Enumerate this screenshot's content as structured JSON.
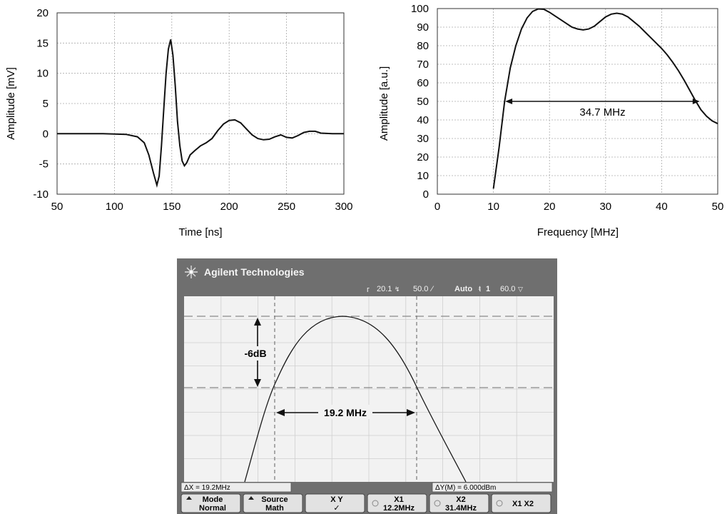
{
  "chart_data": [
    {
      "type": "line",
      "title": "",
      "xlabel": "Time [ns]",
      "ylabel": "Amplitude [mV]",
      "xlim": [
        50,
        300
      ],
      "ylim": [
        -10,
        20
      ],
      "xticks": [
        "50",
        "100",
        "150",
        "200",
        "250",
        "300"
      ],
      "yticks": [
        "-10",
        "-5",
        "0",
        "5",
        "10",
        "15",
        "20"
      ],
      "grid": true,
      "series": [
        {
          "x": [
            50,
            90,
            110,
            120,
            126,
            130,
            134,
            137,
            139,
            141,
            143,
            145,
            147,
            149,
            151,
            153,
            155,
            157,
            159,
            161,
            163,
            166,
            170,
            175,
            180,
            185,
            190,
            195,
            200,
            205,
            210,
            215,
            220,
            225,
            230,
            235,
            240,
            245,
            250,
            255,
            260,
            265,
            270,
            275,
            280,
            290,
            300
          ],
          "values": [
            0,
            0,
            -0.1,
            -0.5,
            -1.5,
            -3.5,
            -6.5,
            -8.5,
            -7,
            -2,
            4,
            10,
            14,
            15.6,
            13,
            8,
            2,
            -2,
            -4.5,
            -5.3,
            -4.8,
            -3.5,
            -2.8,
            -2,
            -1.5,
            -0.8,
            0.5,
            1.6,
            2.2,
            2.3,
            1.8,
            0.8,
            -0.2,
            -0.8,
            -1,
            -0.9,
            -0.5,
            -0.2,
            -0.6,
            -0.7,
            -0.3,
            0.2,
            0.4,
            0.4,
            0.1,
            0,
            0
          ]
        }
      ]
    },
    {
      "type": "line",
      "title": "",
      "xlabel": "Frequency [MHz]",
      "ylabel": "Amplitude [a.u.]",
      "xlim": [
        0,
        50
      ],
      "ylim": [
        0,
        100
      ],
      "xticks": [
        "0",
        "10",
        "20",
        "30",
        "40",
        "50"
      ],
      "yticks": [
        "0",
        "10",
        "20",
        "30",
        "40",
        "50",
        "60",
        "70",
        "80",
        "90",
        "100"
      ],
      "grid": true,
      "series": [
        {
          "x": [
            10,
            11,
            12,
            13,
            14,
            15,
            16,
            17,
            18,
            19,
            20,
            21,
            22,
            23,
            24,
            25,
            26,
            27,
            28,
            29,
            30,
            31,
            32,
            33,
            34,
            35,
            36,
            37,
            38,
            39,
            40,
            41,
            42,
            43,
            44,
            45,
            46,
            47,
            48,
            49,
            50
          ],
          "values": [
            3,
            25,
            50,
            68,
            80,
            89,
            95,
            98.5,
            99.8,
            99.6,
            98,
            96,
            94,
            92,
            90,
            89,
            88.5,
            89,
            90.5,
            93,
            95.5,
            97,
            97.5,
            97,
            95.5,
            93,
            90.5,
            87.5,
            84.5,
            81.5,
            78.5,
            75,
            71,
            66.5,
            61.5,
            56,
            50.5,
            45.5,
            42,
            39.5,
            38
          ]
        }
      ],
      "annotation": {
        "label": "34.7 MHz",
        "x_from": 12.1,
        "x_to": 46.8,
        "y": 50
      }
    }
  ],
  "scope": {
    "brand": "Agilent Technologies",
    "status_bar": {
      "trigger_level": "20.1",
      "trigger_level_unit_glyph": "↯",
      "timebase": "50.0",
      "timebase_unit_glyph": "⁄",
      "trigger_mode": "Auto",
      "trigger_source": "1",
      "offset": "60.0",
      "offset_unit_glyph": "▽"
    },
    "annotations": {
      "db_label": "-6dB",
      "bandwidth_label": "19.2 MHz"
    },
    "readouts": {
      "delta_x": "ΔX = 19.2MHz",
      "delta_y": "ΔY(M) = 6.000dBm"
    },
    "softkeys": [
      {
        "top": "Mode",
        "bottom": "Normal"
      },
      {
        "top": "Source",
        "bottom": "Math"
      },
      {
        "top": "X     Y",
        "bottom": "✓"
      },
      {
        "top": "X1",
        "bottom": "12.2MHz"
      },
      {
        "top": "X2",
        "bottom": "31.4MHz"
      },
      {
        "top": "X1 X2",
        "bottom": ""
      }
    ],
    "colors": {
      "bezel": "#6f6f6f",
      "screen": "#f2f2f2",
      "softkey": "#e2e2e2",
      "trace": "#1a1a1a"
    }
  }
}
